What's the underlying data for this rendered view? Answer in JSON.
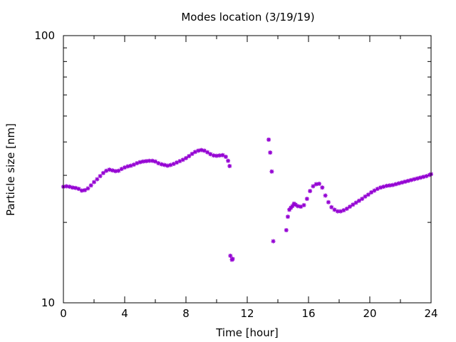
{
  "chart_data": {
    "type": "scatter",
    "title": "Modes location (3/19/19)",
    "xlabel": "Time [hour]",
    "ylabel": "Particle size [nm]",
    "xlim": [
      0,
      24
    ],
    "ylim": [
      10,
      100
    ],
    "yscale": "log",
    "grid": false,
    "x_ticks": [
      0,
      4,
      8,
      12,
      16,
      20,
      24
    ],
    "x_tick_labels": [
      "0",
      "4",
      "8",
      "12",
      "16",
      "20",
      "24"
    ],
    "x_minor_ticks": [
      2,
      6,
      10,
      14,
      18,
      22
    ],
    "y_ticks": [
      10,
      100
    ],
    "y_tick_labels": [
      "10",
      "100"
    ],
    "y_minor_ticks": [
      20,
      30,
      40,
      50,
      60,
      70,
      80,
      90
    ],
    "marker": "star",
    "color": "#9400d3",
    "series": [
      {
        "x": [
          0,
          0.2,
          0.4,
          0.6,
          0.8,
          1.0,
          1.2,
          1.4,
          1.6,
          1.8,
          2.0,
          2.2,
          2.4,
          2.6,
          2.8,
          3.0,
          3.2,
          3.4,
          3.6,
          3.8,
          4.0,
          4.2,
          4.4,
          4.6,
          4.8,
          5.0,
          5.2,
          5.4,
          5.6,
          5.8,
          6.0,
          6.2,
          6.4,
          6.6,
          6.8,
          7.0,
          7.2,
          7.4,
          7.6,
          7.8,
          8.0,
          8.2,
          8.4,
          8.6,
          8.8,
          9.0,
          9.2,
          9.4,
          9.6,
          9.8,
          10.0,
          10.2,
          10.4,
          10.6,
          10.75,
          10.85,
          10.9,
          11.0,
          11.05,
          13.4,
          13.5,
          13.6,
          13.7,
          14.55,
          14.65,
          14.75,
          14.85,
          14.95,
          15.05,
          15.15,
          15.3,
          15.5,
          15.7,
          15.9,
          16.1,
          16.3,
          16.5,
          16.7,
          16.9,
          17.1,
          17.3,
          17.5,
          17.7,
          17.9,
          18.1,
          18.3,
          18.5,
          18.7,
          18.9,
          19.1,
          19.3,
          19.5,
          19.7,
          19.9,
          20.1,
          20.3,
          20.5,
          20.7,
          20.9,
          21.1,
          21.3,
          21.5,
          21.7,
          21.9,
          22.1,
          22.3,
          22.5,
          22.7,
          22.9,
          23.1,
          23.3,
          23.5,
          23.7,
          23.9,
          24.0
        ],
        "y": [
          27.2,
          27.3,
          27.2,
          27.0,
          26.9,
          26.7,
          26.3,
          26.4,
          26.8,
          27.5,
          28.3,
          29.0,
          29.8,
          30.6,
          31.2,
          31.5,
          31.3,
          31.1,
          31.2,
          31.7,
          32.1,
          32.4,
          32.6,
          32.9,
          33.3,
          33.6,
          33.8,
          33.9,
          34.0,
          34.0,
          33.8,
          33.3,
          33.0,
          32.8,
          32.6,
          32.8,
          33.1,
          33.5,
          33.9,
          34.3,
          34.8,
          35.4,
          36.1,
          36.7,
          37.1,
          37.3,
          37.1,
          36.6,
          36.0,
          35.6,
          35.5,
          35.6,
          35.7,
          35.2,
          34.0,
          32.5,
          15.0,
          14.5,
          14.6,
          40.8,
          36.5,
          31.0,
          17.0,
          18.7,
          21.0,
          22.3,
          22.7,
          23.0,
          23.5,
          23.3,
          23.0,
          22.9,
          23.2,
          24.5,
          26.2,
          27.3,
          27.8,
          27.9,
          27.0,
          25.2,
          23.8,
          22.8,
          22.3,
          22.0,
          22.0,
          22.2,
          22.5,
          22.9,
          23.3,
          23.7,
          24.1,
          24.5,
          25.0,
          25.4,
          25.9,
          26.3,
          26.7,
          27.0,
          27.2,
          27.4,
          27.5,
          27.6,
          27.8,
          28.0,
          28.2,
          28.4,
          28.6,
          28.8,
          29.0,
          29.2,
          29.4,
          29.6,
          29.8,
          30.1,
          30.3
        ]
      }
    ]
  }
}
